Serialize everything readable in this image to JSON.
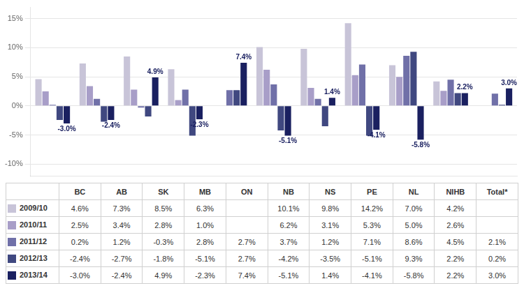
{
  "chart_data": {
    "type": "bar",
    "categories": [
      "BC",
      "AB",
      "SK",
      "MB",
      "ON",
      "NB",
      "NS",
      "PE",
      "NL",
      "NIHB",
      "Total*"
    ],
    "series": [
      {
        "name": "2009/10",
        "color": "#c8c4d8",
        "values": [
          4.6,
          7.3,
          8.5,
          6.3,
          null,
          10.1,
          9.8,
          14.2,
          7.0,
          4.2,
          null
        ],
        "value_labels": [
          "4.6%",
          "7.3%",
          "8.5%",
          "6.3%",
          null,
          "10.1%",
          "9.8%",
          "14.2%",
          "7.0%",
          "4.2%",
          null
        ]
      },
      {
        "name": "2010/11",
        "color": "#a89ec8",
        "values": [
          2.5,
          3.4,
          2.8,
          1.0,
          null,
          6.2,
          3.1,
          5.3,
          5.0,
          2.6,
          null
        ],
        "value_labels": [
          "2.5%",
          "3.4%",
          "2.8%",
          "1.0%",
          null,
          "6.2%",
          "3.1%",
          "5.3%",
          "5.0%",
          "2.6%",
          null
        ]
      },
      {
        "name": "2011/12",
        "color": "#7070a8",
        "values": [
          0.2,
          1.2,
          -0.3,
          2.8,
          2.7,
          3.7,
          1.2,
          7.1,
          8.6,
          4.5,
          2.1
        ],
        "value_labels": [
          "0.2%",
          "1.2%",
          "-0.3%",
          "2.8%",
          "2.7%",
          "3.7%",
          "1.2%",
          "7.1%",
          "8.6%",
          "4.5%",
          "2.1%"
        ]
      },
      {
        "name": "2012/13",
        "color": "#404880",
        "values": [
          -2.4,
          -2.7,
          -1.8,
          -5.1,
          2.7,
          -4.2,
          -3.5,
          -5.1,
          9.3,
          2.2,
          0.2
        ],
        "value_labels": [
          "-2.4%",
          "-2.7%",
          "-1.8%",
          "-5.1%",
          "2.7%",
          "-4.2%",
          "-3.5%",
          "-5.1%",
          "9.3%",
          "2.2%",
          "0.2%"
        ]
      },
      {
        "name": "2013/14",
        "color": "#1a2060",
        "data_labels": true,
        "values": [
          -3.0,
          -2.4,
          4.9,
          -2.3,
          7.4,
          -5.1,
          1.4,
          -4.1,
          -5.8,
          2.2,
          3.0
        ],
        "value_labels": [
          "-3.0%",
          "-2.4%",
          "4.9%",
          "-2.3%",
          "7.4%",
          "-5.1%",
          "1.4%",
          "-4.1%",
          "-5.8%",
          "2.2%",
          "3.0%"
        ]
      }
    ],
    "ylim": [
      -12,
      17
    ],
    "yticks": [
      {
        "value": -10,
        "label": "-10%"
      },
      {
        "value": -5,
        "label": "-5%"
      },
      {
        "value": 0,
        "label": "0%"
      },
      {
        "value": 5,
        "label": "5%"
      },
      {
        "value": 10,
        "label": "10%"
      },
      {
        "value": 15,
        "label": "15%"
      }
    ],
    "grid": true,
    "tick_labels": "y"
  }
}
